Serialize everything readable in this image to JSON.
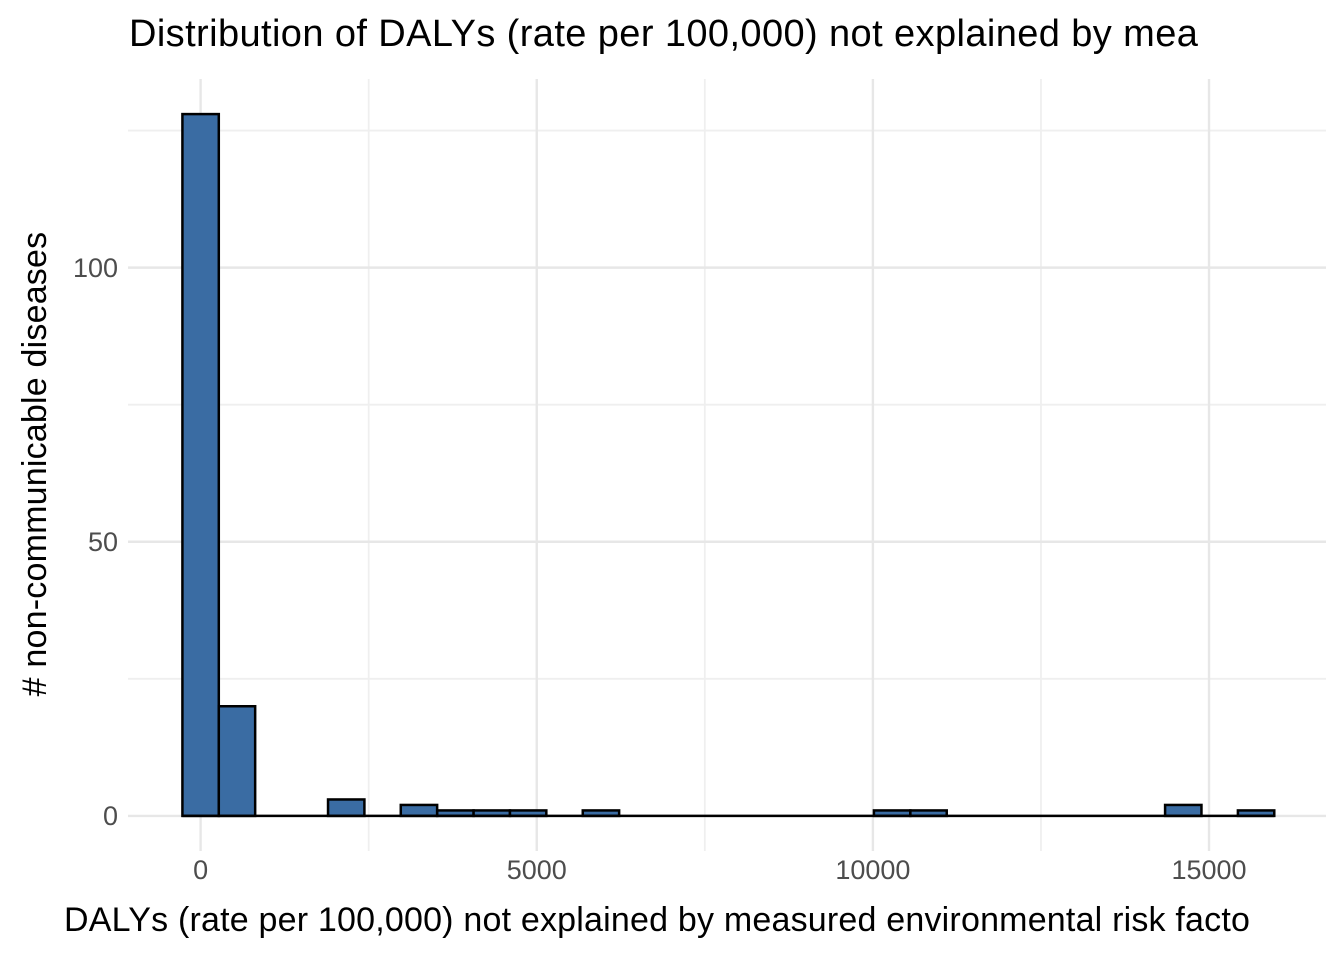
{
  "chart_data": {
    "type": "bar",
    "subtype": "histogram",
    "title": "Distribution of DALYs (rate per 100,000) not explained by mea",
    "xlabel": "DALYs (rate per 100,000) not explained by measured environmental risk facto",
    "ylabel": "# non-communicable diseases",
    "binwidth": 541,
    "bins": [
      {
        "center": 0,
        "count": 128
      },
      {
        "center": 541,
        "count": 20
      },
      {
        "center": 2166,
        "count": 3
      },
      {
        "center": 3248,
        "count": 2
      },
      {
        "center": 3790,
        "count": 1
      },
      {
        "center": 4331,
        "count": 1
      },
      {
        "center": 4872,
        "count": 1
      },
      {
        "center": 5955,
        "count": 1
      },
      {
        "center": 10286,
        "count": 1
      },
      {
        "center": 10828,
        "count": 1
      },
      {
        "center": 14617,
        "count": 2
      },
      {
        "center": 15700,
        "count": 1
      }
    ],
    "x_ticks": [
      0,
      5000,
      10000,
      15000
    ],
    "x_minor_ticks": [
      2500,
      7500,
      12500
    ],
    "y_ticks": [
      0,
      50,
      100
    ],
    "y_minor_ticks": [
      25,
      75,
      125
    ],
    "xlim": [
      -1080,
      16740
    ],
    "ylim": [
      -6.4,
      134.4
    ],
    "grid": true,
    "legend_position": "none",
    "colors": {
      "bar_fill": "#3a6ca3",
      "bar_stroke": "#000000",
      "grid_major": "#e7e7e7",
      "grid_minor": "#efefef",
      "tick_text": "#4d4d4d",
      "label_text": "#000000",
      "background": "#ffffff"
    }
  }
}
